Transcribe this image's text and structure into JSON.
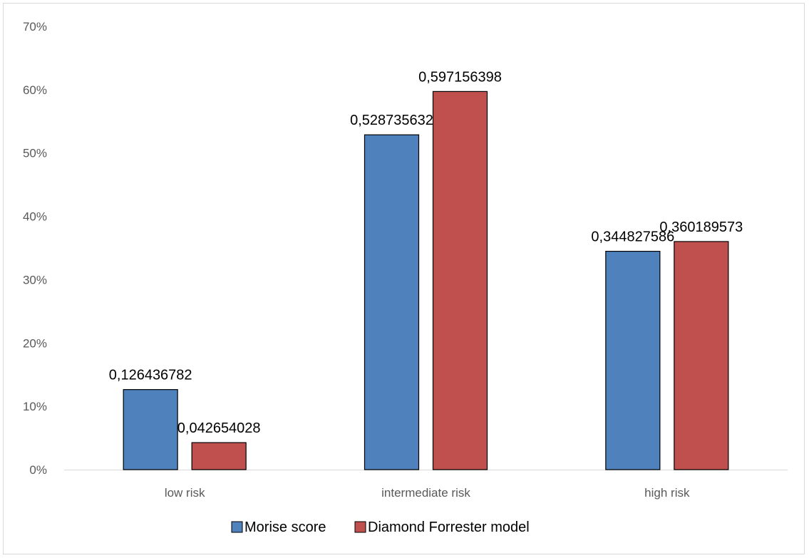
{
  "chart_data": {
    "type": "bar",
    "categories": [
      "low risk",
      "intermediate risk",
      "high risk"
    ],
    "series": [
      {
        "name": "Morise score",
        "values": [
          0.126436782,
          0.528735632,
          0.344827586
        ],
        "labels": [
          "0,126436782",
          "0,528735632",
          "0,344827586"
        ],
        "color": "#4f81bd"
      },
      {
        "name": "Diamond Forrester model",
        "values": [
          0.042654028,
          0.597156398,
          0.360189573
        ],
        "labels": [
          "0,042654028",
          "0,597156398",
          "0,360189573"
        ],
        "color": "#c0504d"
      }
    ],
    "y_ticks": [
      0,
      0.1,
      0.2,
      0.3,
      0.4,
      0.5,
      0.6,
      0.7
    ],
    "y_tick_labels": [
      "0%",
      "10%",
      "20%",
      "30%",
      "40%",
      "50%",
      "60%",
      "70%"
    ],
    "ylim": [
      0,
      0.7
    ],
    "grid": false,
    "legend_position": "bottom",
    "title": "",
    "xlabel": "",
    "ylabel": ""
  }
}
